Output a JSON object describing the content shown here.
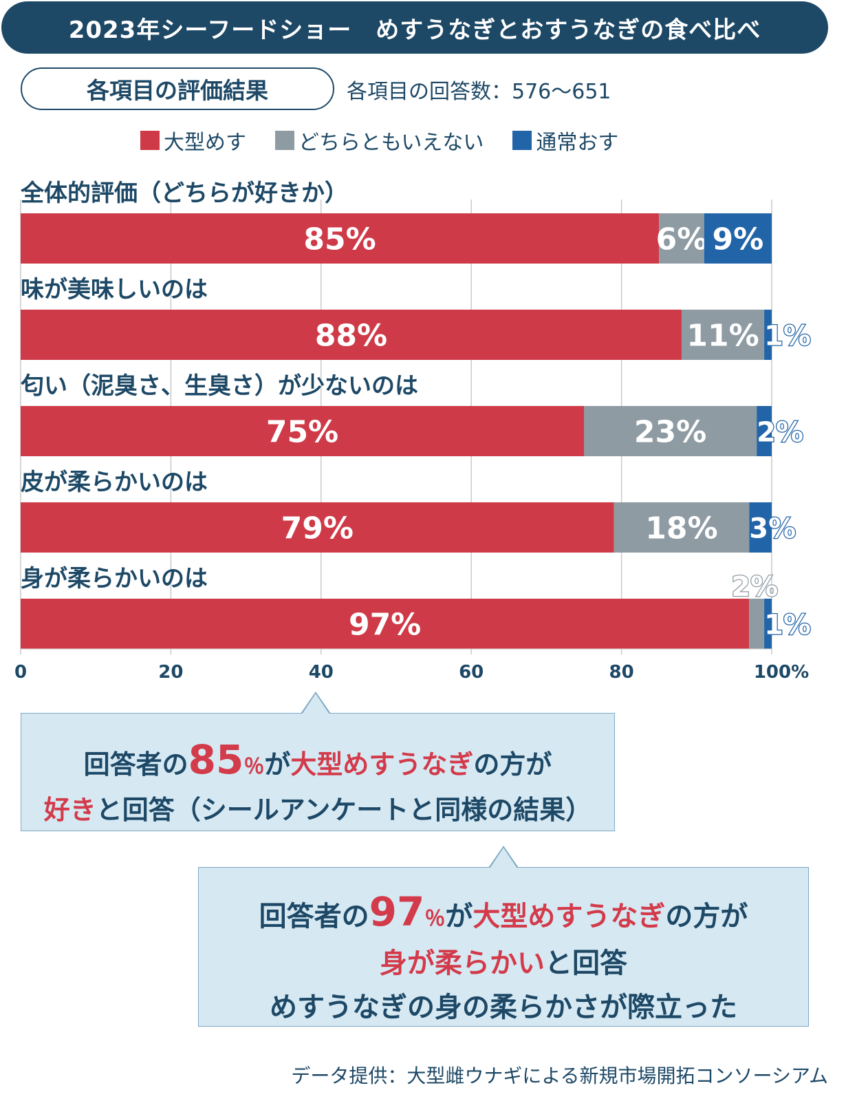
{
  "title": "2023年シーフードショー　めすうなぎとおすうなぎの食べ比べ",
  "section_label": "各項目の評価結果",
  "count_note": "各項目の回答数：576〜651",
  "legend": [
    {
      "label": "大型めす",
      "color": "#cf3a48"
    },
    {
      "label": "どちらともいえない",
      "color": "#8e9ba3"
    },
    {
      "label": "通常おす",
      "color": "#2264a8"
    }
  ],
  "colors": {
    "red": "#cf3a48",
    "gray": "#8e9ba3",
    "blue": "#2264a8",
    "grid": "#c9c9c9"
  },
  "chart_data": {
    "type": "bar",
    "orientation": "horizontal",
    "stacked": true,
    "categories": [
      "全体的評価（どちらが好きか）",
      "味が美味しいのは",
      "匂い（泥臭さ、生臭さ）が少ないのは",
      "皮が柔らかいのは",
      "身が柔らかいのは"
    ],
    "series": [
      {
        "name": "大型めす",
        "values": [
          85,
          88,
          75,
          79,
          97
        ],
        "labels": [
          "85%",
          "88%",
          "75%",
          "79%",
          "97%"
        ]
      },
      {
        "name": "どちらともいえない",
        "values": [
          6,
          11,
          23,
          18,
          2
        ],
        "labels": [
          "6%",
          "11%",
          "23%",
          "18%",
          "2%"
        ]
      },
      {
        "name": "通常おす",
        "values": [
          9,
          1,
          2,
          3,
          1
        ],
        "labels": [
          "9%",
          "1%",
          "2%",
          "3%",
          "1%"
        ]
      }
    ],
    "xlim": [
      0,
      100
    ],
    "xticks": [
      "0",
      "20",
      "40",
      "60",
      "80",
      "100%"
    ],
    "grid": true,
    "legend_position": "top"
  },
  "callout1": {
    "prefix": "回答者の",
    "big": "85",
    "pct": "％",
    "mid": "が",
    "hl1": "大型めすうなぎ",
    "suffix1": "の方が",
    "hl2": "好き",
    "suffix2": "と回答（シールアンケートと同様の結果）"
  },
  "callout2": {
    "prefix": "回答者の",
    "big": "97",
    "pct": "％",
    "mid": "が",
    "hl1": "大型めすうなぎ",
    "suffix1": "の方が",
    "hl2": "身が柔らかい",
    "suffix2": "と回答",
    "line3": "めすうなぎの身の柔らかさが際立った"
  },
  "credit": "データ提供：大型雌ウナギによる新規市場開拓コンソーシアム"
}
